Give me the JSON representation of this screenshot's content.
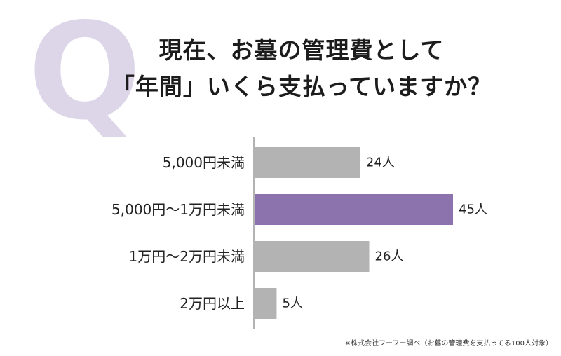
{
  "question": {
    "q_mark": "Q",
    "line1": "現在、お墓の管理費として",
    "line2": "「年間」いくら支払っていますか？"
  },
  "chart_data": {
    "type": "bar",
    "orientation": "horizontal",
    "categories": [
      "5,000円未満",
      "5,000円〜1万円未満",
      "1万円〜2万円未満",
      "2万円以上"
    ],
    "values": [
      24,
      45,
      26,
      5
    ],
    "value_labels": [
      "24人",
      "45人",
      "26人",
      "5人"
    ],
    "unit": "人",
    "xlim": [
      0,
      45
    ],
    "highlight_index": 1,
    "colors": {
      "bar": "#b3b3b3",
      "highlight": "#8c73ad",
      "axis": "#9a9a9a"
    },
    "grid": false,
    "legend": "none"
  },
  "footnote": "※株式会社フーフー調べ（お墓の管理費を支払ってる100人対象）"
}
